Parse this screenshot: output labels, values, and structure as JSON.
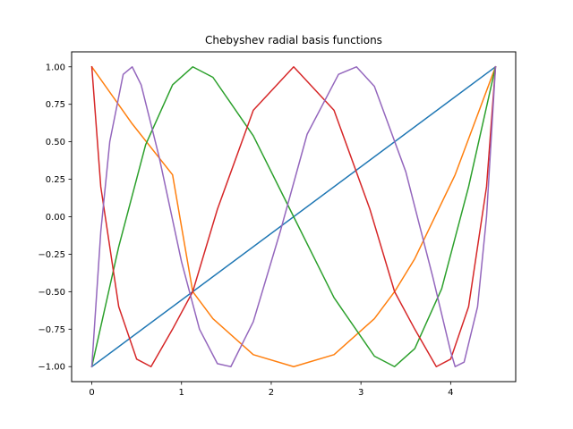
{
  "chart_data": {
    "type": "line",
    "title": "Chebyshev radial basis functions",
    "xlabel": "",
    "ylabel": "",
    "xlim": [
      -0.225,
      4.725
    ],
    "ylim": [
      -1.1,
      1.1
    ],
    "xticks": [
      0,
      1,
      2,
      3,
      4
    ],
    "xtick_labels": [
      "0",
      "1",
      "2",
      "3",
      "4"
    ],
    "yticks": [
      -1.0,
      -0.75,
      -0.5,
      -0.25,
      0.0,
      0.25,
      0.5,
      0.75,
      1.0
    ],
    "ytick_labels": [
      "−1.00",
      "−0.75",
      "−0.50",
      "−0.25",
      "0.00",
      "0.25",
      "0.50",
      "0.75",
      "1.00"
    ],
    "grid": false,
    "legend": "none",
    "series": [
      {
        "color": "#1f77b4",
        "points": [
          [
            0.0,
            -1.0
          ],
          [
            4.5,
            1.0
          ]
        ]
      },
      {
        "color": "#ff7f0e",
        "points": [
          [
            0.0,
            1.0
          ],
          [
            0.45,
            0.62
          ],
          [
            0.9,
            0.28
          ],
          [
            1.125,
            -0.5
          ],
          [
            1.35,
            -0.68
          ],
          [
            1.8,
            -0.92
          ],
          [
            2.25,
            -1.0
          ],
          [
            2.7,
            -0.92
          ],
          [
            3.15,
            -0.68
          ],
          [
            3.375,
            -0.5
          ],
          [
            3.6,
            -0.28
          ],
          [
            4.05,
            0.28
          ],
          [
            4.5,
            1.0
          ]
        ]
      },
      {
        "color": "#2ca02c",
        "points": [
          [
            0.0,
            -1.0
          ],
          [
            0.3,
            -0.2
          ],
          [
            0.6,
            0.48
          ],
          [
            0.9,
            0.88
          ],
          [
            1.125,
            1.0
          ],
          [
            1.35,
            0.93
          ],
          [
            1.8,
            0.54
          ],
          [
            2.25,
            0.0
          ],
          [
            2.7,
            -0.54
          ],
          [
            3.15,
            -0.93
          ],
          [
            3.375,
            -1.0
          ],
          [
            3.6,
            -0.88
          ],
          [
            3.9,
            -0.48
          ],
          [
            4.2,
            0.2
          ],
          [
            4.5,
            1.0
          ]
        ]
      },
      {
        "color": "#d62728",
        "points": [
          [
            0.0,
            1.0
          ],
          [
            0.1,
            0.2
          ],
          [
            0.3,
            -0.6
          ],
          [
            0.5,
            -0.95
          ],
          [
            0.66,
            -1.0
          ],
          [
            0.9,
            -0.75
          ],
          [
            1.125,
            -0.5
          ],
          [
            1.4,
            0.05
          ],
          [
            1.8,
            0.71
          ],
          [
            2.25,
            1.0
          ],
          [
            2.7,
            0.71
          ],
          [
            3.1,
            0.05
          ],
          [
            3.375,
            -0.5
          ],
          [
            3.6,
            -0.75
          ],
          [
            3.84,
            -1.0
          ],
          [
            4.0,
            -0.95
          ],
          [
            4.2,
            -0.6
          ],
          [
            4.4,
            0.2
          ],
          [
            4.5,
            1.0
          ]
        ]
      },
      {
        "color": "#9467bd",
        "points": [
          [
            0.0,
            -1.0
          ],
          [
            0.1,
            -0.1
          ],
          [
            0.2,
            0.5
          ],
          [
            0.35,
            0.95
          ],
          [
            0.45,
            1.0
          ],
          [
            0.55,
            0.88
          ],
          [
            0.75,
            0.4
          ],
          [
            1.0,
            -0.3
          ],
          [
            1.2,
            -0.75
          ],
          [
            1.4,
            -0.98
          ],
          [
            1.55,
            -1.0
          ],
          [
            1.8,
            -0.7
          ],
          [
            2.1,
            -0.1
          ],
          [
            2.4,
            0.55
          ],
          [
            2.75,
            0.95
          ],
          [
            2.95,
            1.0
          ],
          [
            3.15,
            0.87
          ],
          [
            3.5,
            0.3
          ],
          [
            3.8,
            -0.4
          ],
          [
            4.0,
            -0.9
          ],
          [
            4.05,
            -1.0
          ],
          [
            4.15,
            -0.97
          ],
          [
            4.3,
            -0.6
          ],
          [
            4.4,
            0.0
          ],
          [
            4.5,
            1.0
          ]
        ]
      }
    ]
  }
}
